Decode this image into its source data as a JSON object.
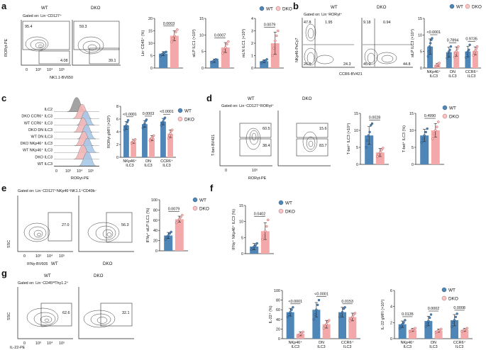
{
  "colors": {
    "wt": "#4f86b8",
    "dko": "#f3a9a9",
    "dko_edge": "#b04a4a"
  },
  "legend": {
    "wt": "WT",
    "dko": "DKO"
  },
  "panels": {
    "a": {
      "letter": "a",
      "wt_label": "WT",
      "dko_label": "DKO",
      "gate": "Gated on: Lin⁻CD127⁺",
      "xlabel": "NK1.1-BV650",
      "ylabel": "RORγt-PE",
      "wt_q_top": "95.4",
      "wt_q_bottom": "4.08",
      "dko_q_top": "59.3",
      "dko_q_bottom": "39.1",
      "tick0": "0",
      "tick10_3": "10³",
      "tick10_4": "10⁴",
      "tick10_5": "10⁵"
    },
    "b": {
      "letter": "b",
      "wt_label": "WT",
      "dko_label": "DKO",
      "gate": "Gated on: Lin⁻RORγt⁺",
      "xlabel": "CCR6-BV421",
      "ylabel": "NKp46-PeCy7",
      "wt_tl": "47.8",
      "wt_tr": "1.95",
      "wt_bl": "26.0",
      "wt_br": "24.3",
      "dko_tl": "9.18",
      "dko_tr": "0.94",
      "dko_bl": "45.0",
      "dko_br": "44.8"
    },
    "c": {
      "letter": "c",
      "xlabel": "RORγt-PE",
      "hist_rows": [
        "ILC2",
        "DKO CCR6⁺ ILC3",
        "WT CCR6⁺ ILC3",
        "DKO DN ILC3",
        "WT DN ILC3",
        "DKO NKp46⁺ ILC3",
        "WT NKp46⁺ ILC3",
        "DKO ILC3",
        "WT ILC3"
      ],
      "tick0": "0",
      "tick10_3": "10³",
      "tick10_4": "10⁴",
      "tick10_5": "10⁵"
    },
    "d": {
      "letter": "d",
      "wt_label": "WT",
      "dko_label": "DKO",
      "gate": "Gated on: Lin⁻CD127⁺RORγt⁺",
      "xlabel": "RORγt-PE",
      "ylabel": "T-bet-BV421",
      "wt_top": "60.5",
      "wt_bottom": "38.4",
      "dko_top": "15.6",
      "dko_bottom": "83.7",
      "tick0": "0",
      "tick10_5": "10⁵"
    },
    "e": {
      "letter": "e",
      "wt_label": "WT",
      "dko_label": "DKO",
      "gate": "Gated on: Lin⁻CD127⁺NKp46⁺NK1.1⁺CD49b⁻",
      "xlabel": "IFNγ-BV605",
      "ylabel": "SSC",
      "wt_gate": "27.0",
      "dko_gate": "56.3",
      "tick0": "0",
      "tick10_3": "10³",
      "tick10_4": "10⁴",
      "tick10_5": "10⁵"
    },
    "f": {
      "letter": "f"
    },
    "g": {
      "letter": "g",
      "wt_label": "WT",
      "dko_label": "DKO",
      "gate": "Gated on: Lin⁻CD45ᴴᴵThy1.2⁺",
      "xlabel": "IL-22-PE",
      "ylabel": "SSC",
      "wt_gate": "62.6",
      "dko_gate": "32.1",
      "tick0": "0",
      "tick10_3": "10³",
      "tick10_4": "10⁴",
      "tick10_5": "10⁵"
    }
  },
  "chart_data": [
    {
      "id": "a1",
      "type": "bar",
      "ylabel": "Lin⁻CD45⁺ (%)",
      "ylim": [
        0,
        20
      ],
      "yticks": [
        0,
        5,
        10,
        15,
        20
      ],
      "categories": [
        ""
      ],
      "pvalues": [
        "0.0003"
      ],
      "series": [
        {
          "name": "WT",
          "values": [
            5.8
          ],
          "sd": [
            0.8
          ],
          "points": [
            [
              4.8,
              5.5,
              6.0,
              6.3,
              6.5
            ]
          ]
        },
        {
          "name": "DKO",
          "values": [
            13.0
          ],
          "sd": [
            2.0
          ],
          "points": [
            [
              10.5,
              12.0,
              13.0,
              14.5,
              15.5
            ]
          ]
        }
      ]
    },
    {
      "id": "a2",
      "type": "bar",
      "ylabel": "siLP ILC1 (×10³)",
      "ylim": [
        0,
        15
      ],
      "yticks": [
        0,
        5,
        10,
        15
      ],
      "categories": [
        ""
      ],
      "pvalues": [
        "0.0007"
      ],
      "series": [
        {
          "name": "WT",
          "values": [
            2.2
          ],
          "sd": [
            0.5
          ],
          "points": [
            [
              1.7,
              2.0,
              2.3,
              2.6,
              2.5
            ]
          ]
        },
        {
          "name": "DKO",
          "values": [
            6.2
          ],
          "sd": [
            1.5
          ],
          "points": [
            [
              4.5,
              5.3,
              6.2,
              7.2,
              8.0
            ]
          ]
        }
      ]
    },
    {
      "id": "a3",
      "type": "bar",
      "ylabel": "mLN ILC1 (×10³)",
      "ylim": [
        0,
        4
      ],
      "yticks": [
        0,
        1,
        2,
        3,
        4
      ],
      "categories": [
        ""
      ],
      "pvalues": [
        "0.0079"
      ],
      "series": [
        {
          "name": "WT",
          "values": [
            0.55
          ],
          "sd": [
            0.12
          ],
          "points": [
            [
              0.4,
              0.5,
              0.55,
              0.6,
              0.7
            ]
          ]
        },
        {
          "name": "DKO",
          "values": [
            2.0
          ],
          "sd": [
            0.9
          ],
          "points": [
            [
              1.0,
              1.6,
              2.2,
              2.6,
              3.0
            ]
          ]
        }
      ]
    },
    {
      "id": "b1",
      "type": "bar",
      "ylabel": "siLP ILC3 (×10⁴)",
      "ylim": [
        0,
        15
      ],
      "yticks": [
        0,
        5,
        10,
        15
      ],
      "categories": [
        "NKp46⁺ ILC3",
        "DN ILC3",
        "CCR6⁺ ILC3"
      ],
      "pvalues": [
        "<0.0001",
        "0.7894",
        "0.9735"
      ],
      "series": [
        {
          "name": "WT",
          "values": [
            6.5,
            4.8,
            5.0
          ],
          "sd": [
            2.3,
            1.5,
            1.6
          ],
          "points": [
            [
              3.5,
              5.0,
              6.5,
              7.5,
              8.5,
              9.0
            ],
            [
              3.0,
              4.0,
              5.0,
              5.5,
              6.5
            ],
            [
              3.2,
              4.5,
              5.0,
              5.5,
              7.0
            ]
          ]
        },
        {
          "name": "DKO",
          "values": [
            1.0,
            5.0,
            5.2
          ],
          "sd": [
            0.4,
            1.4,
            1.2
          ],
          "points": [
            [
              0.5,
              0.8,
              1.0,
              1.3,
              1.5
            ],
            [
              3.3,
              4.5,
              5.0,
              5.8,
              6.5
            ],
            [
              3.8,
              4.6,
              5.2,
              5.8,
              6.5
            ]
          ]
        }
      ]
    },
    {
      "id": "c1",
      "type": "bar",
      "ylabel": "RORγt gMFI (×10³)",
      "ylim": [
        0,
        8
      ],
      "yticks": [
        0,
        2,
        4,
        6,
        8
      ],
      "categories": [
        "NKp46⁺ ILC3",
        "DN ILC3",
        "CCR6⁺ ILC3"
      ],
      "pvalues": [
        "<0.0001",
        "0.0003",
        "<0.0001"
      ],
      "series": [
        {
          "name": "WT",
          "values": [
            5.0,
            5.2,
            5.6
          ],
          "sd": [
            0.6,
            0.5,
            0.5
          ],
          "points": [
            [
              4.3,
              4.8,
              5.0,
              5.5,
              5.8
            ],
            [
              4.6,
              5.0,
              5.3,
              5.7,
              5.9
            ],
            [
              5.0,
              5.4,
              5.6,
              6.0,
              6.2
            ]
          ]
        },
        {
          "name": "DKO",
          "values": [
            2.5,
            3.0,
            3.7
          ],
          "sd": [
            0.3,
            0.4,
            0.6
          ],
          "points": [
            [
              2.2,
              2.4,
              2.5,
              2.7,
              2.8
            ],
            [
              2.6,
              2.9,
              3.0,
              3.2,
              3.4
            ],
            [
              3.0,
              3.4,
              3.7,
              4.1,
              4.3
            ]
          ]
        }
      ]
    },
    {
      "id": "d1",
      "type": "bar",
      "ylabel": "T-bet⁺ ILC3 (×10⁴)",
      "ylim": [
        0,
        15
      ],
      "yticks": [
        0,
        5,
        10,
        15
      ],
      "categories": [
        ""
      ],
      "pvalues": [
        "0.0028"
      ],
      "series": [
        {
          "name": "WT",
          "values": [
            8.5
          ],
          "sd": [
            2.6
          ],
          "points": [
            [
              5.0,
              7.0,
              8.5,
              9.5,
              11.5,
              12.0
            ]
          ]
        },
        {
          "name": "DKO",
          "values": [
            3.5
          ],
          "sd": [
            1.2
          ],
          "points": [
            [
              2.3,
              3.0,
              3.5,
              4.2,
              4.8
            ]
          ]
        }
      ]
    },
    {
      "id": "d2",
      "type": "bar",
      "ylabel": "T-bet⁺ ILC3 (%)",
      "ylim": [
        0,
        15
      ],
      "yticks": [
        0,
        5,
        10,
        15
      ],
      "categories": [
        ""
      ],
      "pvalues": [
        "0.4990"
      ],
      "series": [
        {
          "name": "WT",
          "values": [
            8.5
          ],
          "sd": [
            1.8
          ],
          "points": [
            [
              6.5,
              7.5,
              8.5,
              9.5,
              10.5
            ]
          ]
        },
        {
          "name": "DKO",
          "values": [
            10.0
          ],
          "sd": [
            2.0
          ],
          "points": [
            [
              7.5,
              9.0,
              10.0,
              11.0,
              12.5
            ]
          ]
        }
      ]
    },
    {
      "id": "e1",
      "type": "bar",
      "ylabel": "IFNγ⁺ siLP ILC1 (%)",
      "ylim": [
        0,
        100
      ],
      "yticks": [
        0,
        20,
        40,
        60,
        80,
        100
      ],
      "categories": [
        ""
      ],
      "pvalues": [
        "0.0079"
      ],
      "series": [
        {
          "name": "WT",
          "values": [
            30
          ],
          "sd": [
            6
          ],
          "points": [
            [
              22,
              27,
              30,
              34,
              37
            ]
          ]
        },
        {
          "name": "DKO",
          "values": [
            62
          ],
          "sd": [
            6
          ],
          "points": [
            [
              55,
              58,
              62,
              66,
              70
            ]
          ]
        }
      ]
    },
    {
      "id": "f1",
      "type": "bar",
      "ylabel": "IFNγ⁺ NKp46⁺ ILC3 (%)",
      "ylim": [
        0,
        15
      ],
      "yticks": [
        0,
        5,
        10,
        15
      ],
      "categories": [
        ""
      ],
      "pvalues": [
        "0.0402"
      ],
      "series": [
        {
          "name": "WT",
          "values": [
            2.2
          ],
          "sd": [
            1.0
          ],
          "points": [
            [
              1.2,
              1.8,
              2.2,
              2.6,
              3.2
            ]
          ]
        },
        {
          "name": "DKO",
          "values": [
            7.0
          ],
          "sd": [
            2.6
          ],
          "points": [
            [
              4.5,
              5.5,
              7.0,
              8.5,
              10.5
            ]
          ]
        }
      ]
    },
    {
      "id": "g1",
      "type": "bar",
      "ylabel": "IL-22⁺ (%)",
      "ylim": [
        0,
        100
      ],
      "yticks": [
        0,
        20,
        40,
        60,
        80,
        100
      ],
      "categories": [
        "NKp46⁺ ILC3",
        "DN ILC3",
        "CCR6⁺ ILC3"
      ],
      "pvalues": [
        "<0.0001",
        "<0.0001",
        "0.0153"
      ],
      "series": [
        {
          "name": "WT",
          "values": [
            55,
            60,
            55
          ],
          "sd": [
            8,
            15,
            10
          ],
          "points": [
            [
              45,
              50,
              55,
              60,
              65
            ],
            [
              40,
              50,
              60,
              70,
              80
            ],
            [
              45,
              50,
              55,
              62,
              65
            ]
          ]
        },
        {
          "name": "DKO",
          "values": [
            10,
            30,
            45
          ],
          "sd": [
            4,
            8,
            8
          ],
          "points": [
            [
              6,
              8,
              10,
              12,
              14
            ],
            [
              22,
              26,
              30,
              35,
              38
            ],
            [
              37,
              42,
              45,
              50,
              53
            ]
          ]
        }
      ]
    },
    {
      "id": "g2",
      "type": "bar",
      "ylabel": "IL-22 gMFI (×10⁴)",
      "ylim": [
        0,
        6
      ],
      "yticks": [
        0,
        2,
        4,
        6
      ],
      "categories": [
        "NKp46⁺ ILC3",
        "DN ILC3",
        "CCR6⁺ ILC3"
      ],
      "pvalues": [
        "0.0135",
        "0.0002",
        "0.0008"
      ],
      "series": [
        {
          "name": "WT",
          "values": [
            1.8,
            2.2,
            2.3
          ],
          "sd": [
            0.4,
            0.6,
            0.7
          ],
          "points": [
            [
              1.3,
              1.6,
              1.8,
              2.0,
              2.3
            ],
            [
              1.5,
              1.9,
              2.2,
              2.6,
              3.0
            ],
            [
              1.5,
              2.0,
              2.3,
              2.7,
              3.1
            ]
          ]
        },
        {
          "name": "DKO",
          "values": [
            1.1,
            1.0,
            1.1
          ],
          "sd": [
            0.2,
            0.2,
            0.2
          ],
          "points": [
            [
              0.9,
              1.0,
              1.1,
              1.2,
              1.3
            ],
            [
              0.8,
              0.9,
              1.0,
              1.1,
              1.2
            ],
            [
              0.9,
              1.0,
              1.1,
              1.2,
              1.3
            ]
          ]
        }
      ]
    }
  ]
}
